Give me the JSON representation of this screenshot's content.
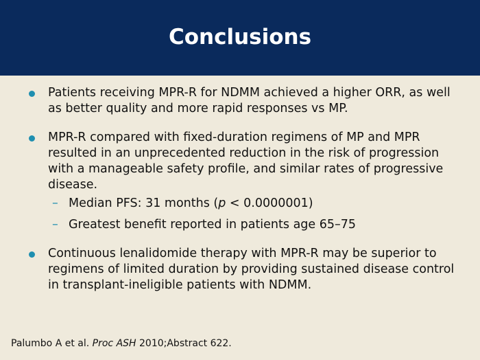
{
  "slide": {
    "title": "Conclusions",
    "colors": {
      "header_bg": "#0a2a5c",
      "background": "#efeadc",
      "bullet": "#1f8fb0"
    }
  },
  "bullets": [
    {
      "text": "Patients receiving MPR-R for NDMM achieved a higher ORR, as well as better quality and more rapid responses vs MP."
    },
    {
      "text": "MPR-R compared with fixed-duration regimens of MP and MPR resulted in an unprecedented reduction in the risk of progression with a manageable safety profile, and similar rates of progressive disease.",
      "subs": [
        {
          "prefix": "Median PFS: 31 months (",
          "italic": "p",
          "suffix": " < 0.0000001)"
        },
        {
          "text": "Greatest benefit reported in patients age 65–75"
        }
      ]
    },
    {
      "text": "Continuous lenalidomide therapy with MPR-R may be superior to regimens of limited duration by providing sustained disease control in transplant-ineligible patients with NDMM."
    }
  ],
  "subs_marker": "–",
  "footer": {
    "author": "Palumbo A et al. ",
    "journal": "Proc ASH",
    "rest": " 2010;Abstract 622."
  }
}
